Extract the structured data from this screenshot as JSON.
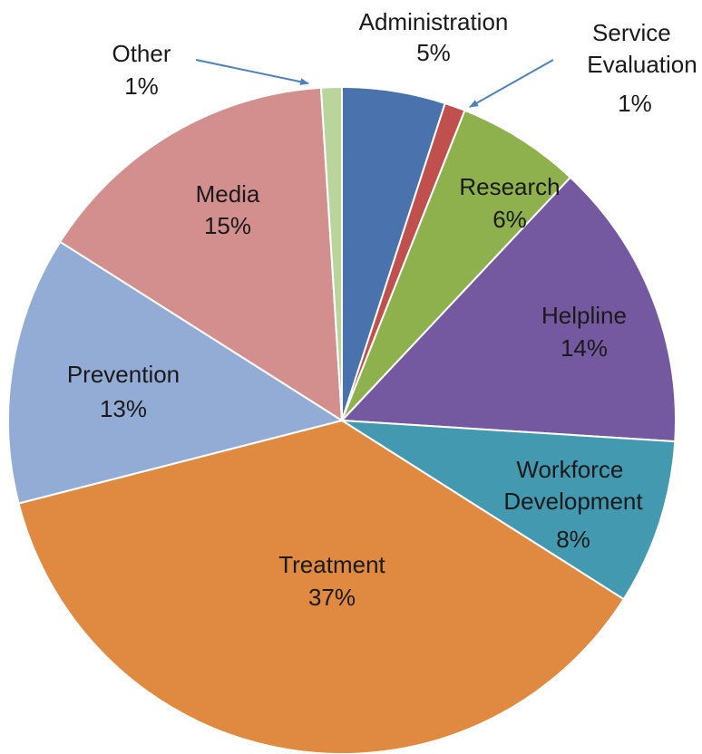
{
  "chart_data": {
    "type": "pie",
    "title": "",
    "unit": "%",
    "slices": [
      {
        "label": "Administration",
        "value": 5,
        "display": "5%",
        "color": "#4a72ad"
      },
      {
        "label": "Service Evaluation",
        "value": 1,
        "display": "1%",
        "color": "#c0504d"
      },
      {
        "label": "Research",
        "value": 6,
        "display": "6%",
        "color": "#8eb04d"
      },
      {
        "label": "Helpline",
        "value": 14,
        "display": "14%",
        "color": "#7559a0"
      },
      {
        "label": "Workforce Development",
        "value": 8,
        "display": "8%",
        "color": "#4399b0"
      },
      {
        "label": "Treatment",
        "value": 37,
        "display": "37%",
        "color": "#df8a40"
      },
      {
        "label": "Prevention",
        "value": 13,
        "display": "13%",
        "color": "#93acd6"
      },
      {
        "label": "Media",
        "value": 15,
        "display": "15%",
        "color": "#d28f8d"
      },
      {
        "label": "Other",
        "value": 1,
        "display": "1%",
        "color": "#b9d59b"
      }
    ]
  }
}
